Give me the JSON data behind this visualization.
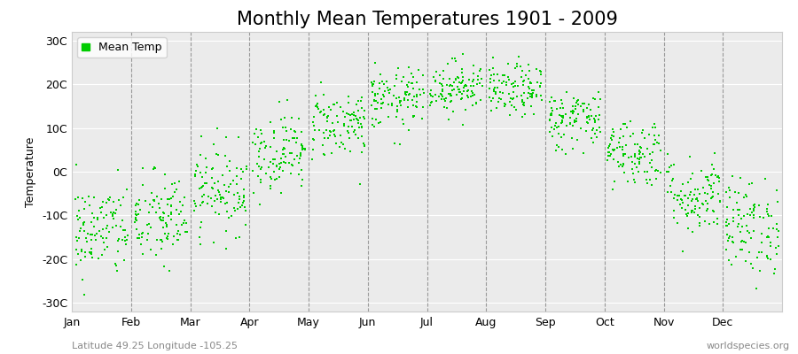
{
  "title": "Monthly Mean Temperatures 1901 - 2009",
  "ylabel": "Temperature",
  "ytick_labels": [
    "30C",
    "20C",
    "10C",
    "0C",
    "-10C",
    "-20C",
    "-30C"
  ],
  "ytick_values": [
    30,
    20,
    10,
    0,
    -10,
    -20,
    -30
  ],
  "ylim": [
    -32,
    32
  ],
  "months": [
    "Jan",
    "Feb",
    "Mar",
    "Apr",
    "May",
    "Jun",
    "Jul",
    "Aug",
    "Sep",
    "Oct",
    "Nov",
    "Dec"
  ],
  "month_means": [
    -13.5,
    -11.0,
    -4.0,
    4.5,
    11.0,
    16.5,
    19.5,
    18.5,
    12.0,
    4.5,
    -5.5,
    -12.5
  ],
  "month_stds": [
    5.5,
    5.5,
    5.0,
    4.5,
    4.0,
    3.5,
    3.0,
    3.0,
    3.5,
    4.0,
    4.5,
    5.5
  ],
  "n_years": 109,
  "dot_color": "#00CC00",
  "dot_size": 3,
  "background_color": "#ffffff",
  "plot_bg_color": "#ebebeb",
  "dashed_line_color": "#999999",
  "legend_label": "Mean Temp",
  "subtitle_left": "Latitude 49.25 Longitude -105.25",
  "subtitle_right": "worldspecies.org",
  "title_fontsize": 15,
  "axis_label_fontsize": 9,
  "tick_fontsize": 9,
  "subtitle_fontsize": 8
}
